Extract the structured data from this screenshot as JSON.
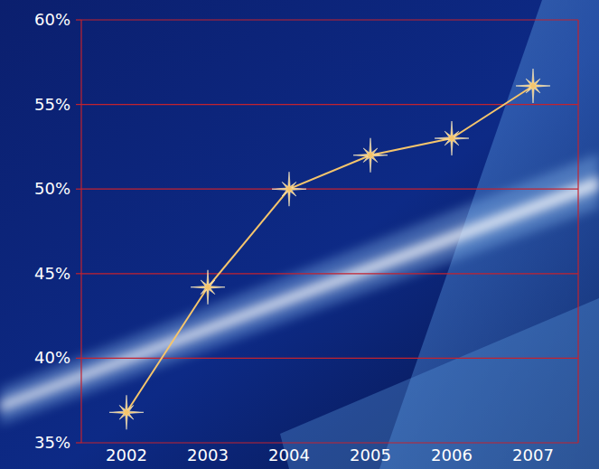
{
  "chart_data": {
    "type": "line",
    "categories": [
      "2002",
      "2003",
      "2004",
      "2005",
      "2006",
      "2007"
    ],
    "values": [
      36.8,
      44.2,
      50.0,
      52.0,
      53.0,
      56.1
    ],
    "color": "#f5c56c",
    "marker": "star",
    "ylim": [
      35,
      60
    ],
    "yticks": [
      {
        "value": 35,
        "label": "35%"
      },
      {
        "value": 40,
        "label": "40%"
      },
      {
        "value": 45,
        "label": "45%"
      },
      {
        "value": 50,
        "label": "50%"
      },
      {
        "value": 55,
        "label": "55%"
      },
      {
        "value": 60,
        "label": "60%"
      }
    ],
    "grid": true
  }
}
